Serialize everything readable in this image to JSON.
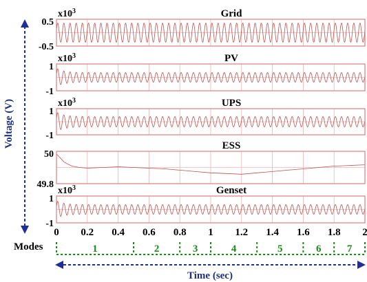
{
  "chart_data": [
    {
      "type": "line",
      "title": "Grid",
      "multiplier_label": "x10",
      "multiplier_exp": "3",
      "yticks": [
        "0.5",
        "-0.5"
      ],
      "ylim": [
        -0.7,
        0.7
      ],
      "amplitude": 0.5,
      "cycles": 100,
      "transient": 0,
      "grid": true
    },
    {
      "type": "line",
      "title": "PV",
      "multiplier_label": "x10",
      "multiplier_exp": "3",
      "yticks": [
        "1",
        "-1"
      ],
      "ylim": [
        -1.4,
        1.4
      ],
      "amplitude": 0.5,
      "cycles": 100,
      "transient": 0.9,
      "grid": true
    },
    {
      "type": "line",
      "title": "UPS",
      "multiplier_label": "x10",
      "multiplier_exp": "3",
      "yticks": [
        "1",
        "-1"
      ],
      "ylim": [
        -1.4,
        1.4
      ],
      "amplitude": 0.55,
      "cycles": 100,
      "transient": 0.9,
      "grid": true
    },
    {
      "type": "line",
      "title": "ESS",
      "yticks": [
        "50",
        "49.8"
      ],
      "ylim": [
        49.78,
        50.02
      ],
      "x": [
        0,
        0.05,
        0.1,
        0.15,
        0.2,
        0.3,
        0.4,
        0.5,
        0.6,
        0.7,
        0.8,
        0.9,
        1.0,
        1.1,
        1.2,
        1.3,
        1.4,
        1.5,
        1.6,
        1.7,
        1.8,
        1.9,
        2.0
      ],
      "y": [
        50.0,
        49.94,
        49.91,
        49.9,
        49.895,
        49.9,
        49.905,
        49.9,
        49.895,
        49.89,
        49.88,
        49.87,
        49.86,
        49.855,
        49.85,
        49.86,
        49.87,
        49.88,
        49.89,
        49.9,
        49.91,
        49.915,
        49.92
      ],
      "grid": true
    },
    {
      "type": "line",
      "title": "Genset",
      "multiplier_label": "x10",
      "multiplier_exp": "3",
      "yticks": [
        "1",
        "-1"
      ],
      "ylim": [
        -1.4,
        1.4
      ],
      "amplitude": 0.5,
      "cycles": 100,
      "transient": 0.8,
      "grid": true
    }
  ],
  "x_axis": {
    "ticks": [
      "0",
      "0.2",
      "0.4",
      "0.6",
      "0.8",
      "1",
      "1.2",
      "1.4",
      "1.6",
      "1.8",
      "2"
    ],
    "xlim": [
      0,
      2
    ],
    "label": "Time (sec)"
  },
  "y_axis": {
    "label": "Voltage (V)"
  },
  "modes": {
    "label": "Modes",
    "boundaries": [
      0,
      0.5,
      0.8,
      1.0,
      1.3,
      1.6,
      1.8,
      2.0
    ],
    "numbers": [
      "1",
      "2",
      "3",
      "4",
      "5",
      "6",
      "7"
    ]
  },
  "colors": {
    "signal": "#c0504d",
    "frame": "#d97f7f",
    "grid": "#e8b4b4",
    "text": "#000000",
    "axis_label": "#1f2f7a",
    "arrow": "#1f2f9a",
    "modes": "#1a8a1a"
  }
}
